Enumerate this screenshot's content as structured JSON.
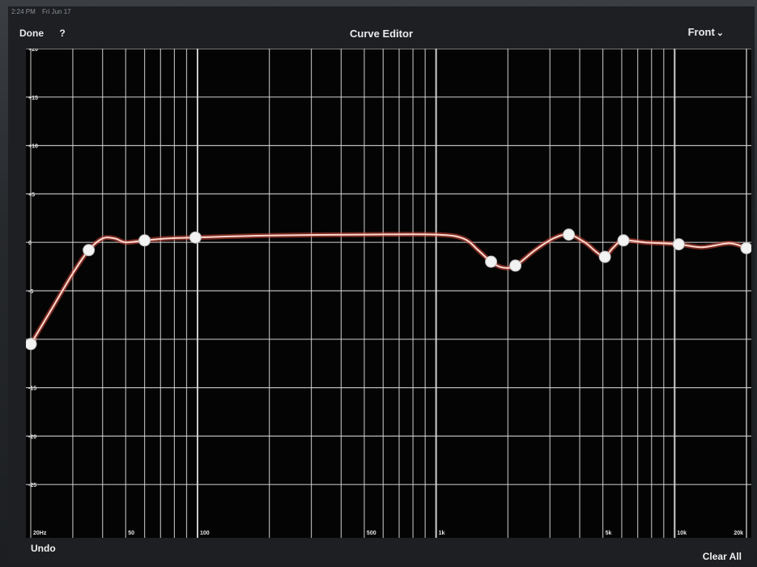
{
  "status_bar": {
    "time": "2:24 PM",
    "date": "Fri Jun 17"
  },
  "nav": {
    "done_label": "Done",
    "help_label": "?",
    "title": "Curve Editor",
    "channel_label": "Front"
  },
  "toolbar": {
    "undo_label": "Undo",
    "clear_all_label": "Clear All"
  },
  "colors": {
    "grid": "#d8d8d8",
    "curve": "#d94a3a",
    "curve_glow": "#ffd9cf",
    "point": "#f2f2f2",
    "background": "#040404"
  },
  "icons": {
    "channel_chevron": "chevron-down-icon"
  },
  "chart_data": {
    "type": "line",
    "x_scale": "log",
    "x_range_hz": [
      20,
      20000
    ],
    "y_range_db": [
      -30,
      20
    ],
    "y_ticks": [
      20,
      15,
      10,
      5,
      0,
      -5,
      -10,
      -15,
      -20,
      -25
    ],
    "y_tick_labels": [
      "+20",
      "+15",
      "+10",
      "+5",
      "0",
      "-5",
      "-10",
      "-15",
      "-20",
      "-25"
    ],
    "x_tick_labels": [
      {
        "hz": 20,
        "label": "20Hz"
      },
      {
        "hz": 50,
        "label": "50"
      },
      {
        "hz": 100,
        "label": "100"
      },
      {
        "hz": 500,
        "label": "500"
      },
      {
        "hz": 1000,
        "label": "1k"
      },
      {
        "hz": 5000,
        "label": "5k"
      },
      {
        "hz": 10000,
        "label": "10k"
      },
      {
        "hz": 20000,
        "label": "20k"
      }
    ],
    "series": [
      {
        "control_points": [
          {
            "hz": 20,
            "db": -10.5
          },
          {
            "hz": 35,
            "db": -0.8
          },
          {
            "hz": 60,
            "db": 0.2
          },
          {
            "hz": 98,
            "db": 0.5
          },
          {
            "hz": 1700,
            "db": -2.0
          },
          {
            "hz": 2150,
            "db": -2.4
          },
          {
            "hz": 3600,
            "db": 0.8
          },
          {
            "hz": 5100,
            "db": -1.5
          },
          {
            "hz": 6100,
            "db": 0.2
          },
          {
            "hz": 10400,
            "db": -0.2
          },
          {
            "hz": 20000,
            "db": -0.6
          }
        ],
        "curve": [
          {
            "hz": 20,
            "db": -10.5
          },
          {
            "hz": 25,
            "db": -6.5
          },
          {
            "hz": 30,
            "db": -3.2
          },
          {
            "hz": 35,
            "db": -0.8
          },
          {
            "hz": 40,
            "db": 0.4
          },
          {
            "hz": 45,
            "db": 0.4
          },
          {
            "hz": 50,
            "db": 0.0
          },
          {
            "hz": 60,
            "db": 0.2
          },
          {
            "hz": 75,
            "db": 0.4
          },
          {
            "hz": 98,
            "db": 0.5
          },
          {
            "hz": 200,
            "db": 0.7
          },
          {
            "hz": 500,
            "db": 0.8
          },
          {
            "hz": 1000,
            "db": 0.8
          },
          {
            "hz": 1300,
            "db": 0.4
          },
          {
            "hz": 1500,
            "db": -0.8
          },
          {
            "hz": 1700,
            "db": -2.0
          },
          {
            "hz": 1900,
            "db": -2.6
          },
          {
            "hz": 2150,
            "db": -2.4
          },
          {
            "hz": 2600,
            "db": -0.8
          },
          {
            "hz": 3100,
            "db": 0.4
          },
          {
            "hz": 3600,
            "db": 0.8
          },
          {
            "hz": 4200,
            "db": 0.0
          },
          {
            "hz": 4700,
            "db": -1.0
          },
          {
            "hz": 5100,
            "db": -1.5
          },
          {
            "hz": 5500,
            "db": -0.6
          },
          {
            "hz": 6100,
            "db": 0.2
          },
          {
            "hz": 7500,
            "db": 0.0
          },
          {
            "hz": 10400,
            "db": -0.2
          },
          {
            "hz": 13000,
            "db": -0.5
          },
          {
            "hz": 17000,
            "db": -0.1
          },
          {
            "hz": 20000,
            "db": -0.6
          }
        ]
      }
    ]
  }
}
